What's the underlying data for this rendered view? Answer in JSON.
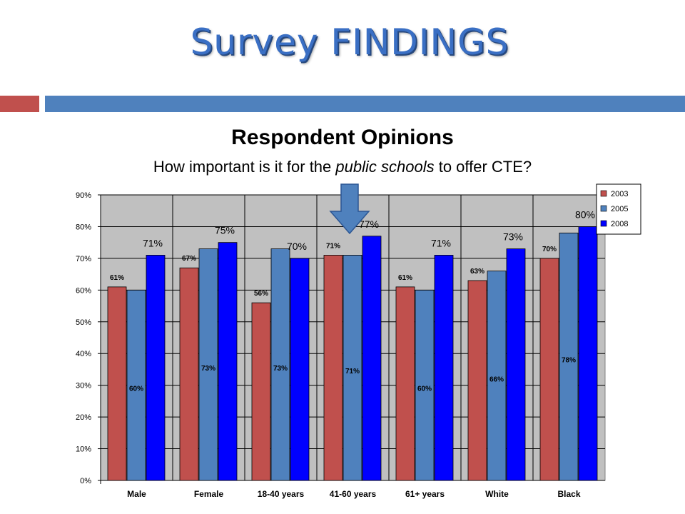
{
  "slide": {
    "title": "Survey FINDINGS"
  },
  "chart_data": {
    "type": "bar",
    "title": "Respondent Opinions",
    "subtitle_parts": [
      "How important is it for the ",
      "public schools",
      " to offer CTE?"
    ],
    "categories": [
      "Male",
      "Female",
      "18-40 years",
      "41-60 years",
      "61+ years",
      "White",
      "Black"
    ],
    "series": [
      {
        "name": "2003",
        "color": "#c0504d",
        "values": [
          61,
          67,
          56,
          71,
          61,
          63,
          70
        ],
        "labels": [
          "61%",
          "67%",
          "56%",
          "71%",
          "61%",
          "63%",
          "70%"
        ]
      },
      {
        "name": "2005",
        "color": "#4f81bd",
        "values": [
          60,
          73,
          73,
          71,
          60,
          66,
          78
        ],
        "labels": [
          "60%",
          "73%",
          "73%",
          "71%",
          "60%",
          "66%",
          "78%"
        ]
      },
      {
        "name": "2008",
        "color": "#0000ff",
        "values": [
          71,
          75,
          70,
          77,
          71,
          73,
          80
        ],
        "labels": [
          "71%",
          "75%",
          "70%",
          "77%",
          "71%",
          "73%",
          "80%"
        ]
      }
    ],
    "y_ticks": [
      "0%",
      "10%",
      "20%",
      "30%",
      "40%",
      "50%",
      "60%",
      "70%",
      "80%",
      "90%"
    ],
    "ylim": [
      0,
      90
    ],
    "grid": true,
    "legend_position": "top-right",
    "highlight_arrow_category": "41-60 years",
    "plot_background": "#c0c0c0"
  }
}
